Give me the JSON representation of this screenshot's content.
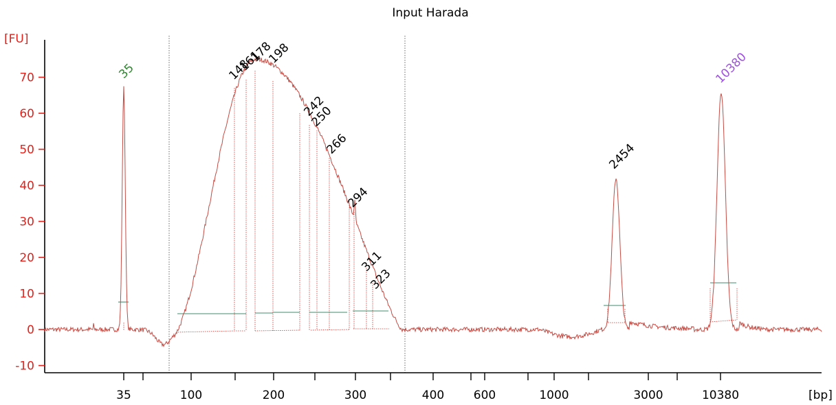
{
  "chart_data": {
    "type": "line",
    "title": "Input Harada",
    "ylabel": "[FU]",
    "xlabel": "[bp]",
    "ylim": [
      -12,
      80
    ],
    "yticks": [
      "-10",
      "0",
      "10",
      "20",
      "30",
      "40",
      "50",
      "60",
      "70"
    ],
    "xticks": [
      "35",
      "100",
      "200",
      "300",
      "400",
      "600",
      "1000",
      "3000",
      "10380"
    ],
    "legend": "none",
    "grid": false,
    "marker_peaks": [
      {
        "label": "35",
        "value": 67,
        "color": "#2a8a2a"
      },
      {
        "label": "10380",
        "value": 66,
        "color": "#a050e0"
      }
    ],
    "peaks": [
      {
        "label": "148",
        "value": 67
      },
      {
        "label": "161",
        "value": 70
      },
      {
        "label": "178",
        "value": 72
      },
      {
        "label": "198",
        "value": 70
      },
      {
        "label": "242",
        "value": 57
      },
      {
        "label": "250",
        "value": 55
      },
      {
        "label": "266",
        "value": 47
      },
      {
        "label": "294",
        "value": 31
      },
      {
        "label": "311",
        "value": 17
      },
      {
        "label": "323",
        "value": 12
      },
      {
        "label": "2454",
        "value": 42
      }
    ]
  }
}
